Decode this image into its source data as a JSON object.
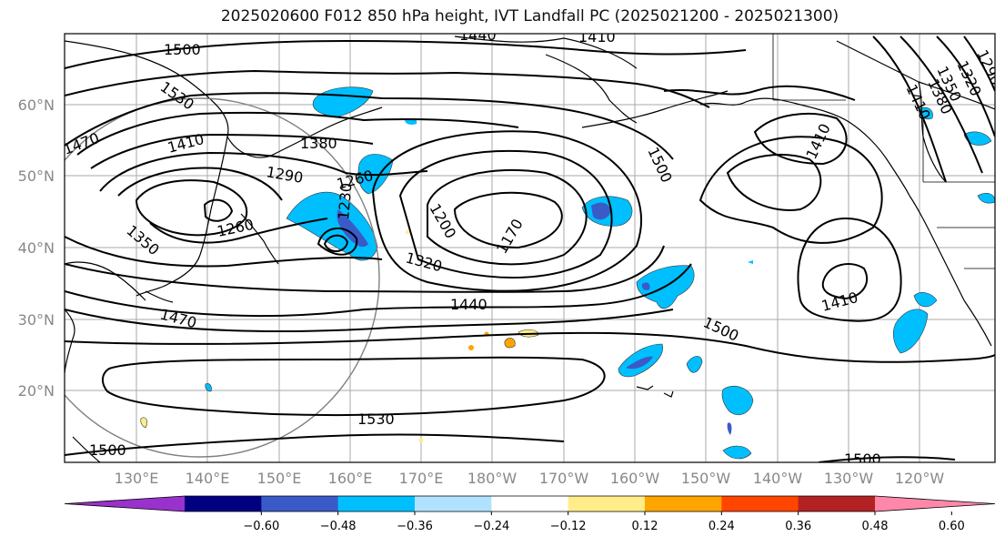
{
  "title": "2025020600 F012 850 hPa height, IVT Landfall PC (2025021200 - 2025021300)",
  "lat_ticks": [
    "60°N",
    "50°N",
    "40°N",
    "30°N",
    "20°N"
  ],
  "lon_ticks": [
    "130°E",
    "140°E",
    "150°E",
    "160°E",
    "170°E",
    "180°W",
    "170°W",
    "160°W",
    "150°W",
    "140°W",
    "130°W",
    "120°W"
  ],
  "contour_labels": [
    "1500",
    "1530",
    "1470",
    "1410",
    "1380",
    "1290",
    "1260",
    "1230",
    "1260",
    "1350",
    "1320",
    "1200",
    "1170",
    "1440",
    "1470",
    "1500",
    "1500",
    "1410",
    "1410",
    "1290",
    "1320",
    "1350",
    "1380",
    "1410",
    "1530",
    "1500",
    "1500",
    "1410",
    "1440"
  ],
  "colorbar": {
    "colors": [
      "#9932CC",
      "#000080",
      "#3A5BC7",
      "#00BFFF",
      "#B0E2FF",
      "#FFFFFF",
      "#FFED8A",
      "#FFA500",
      "#FF4500",
      "#B22222",
      "#FF88AA"
    ],
    "tick_labels": [
      "−0.60",
      "−0.48",
      "−0.36",
      "−0.24",
      "−0.12",
      "0.12",
      "0.24",
      "0.36",
      "0.48",
      "0.60"
    ]
  }
}
